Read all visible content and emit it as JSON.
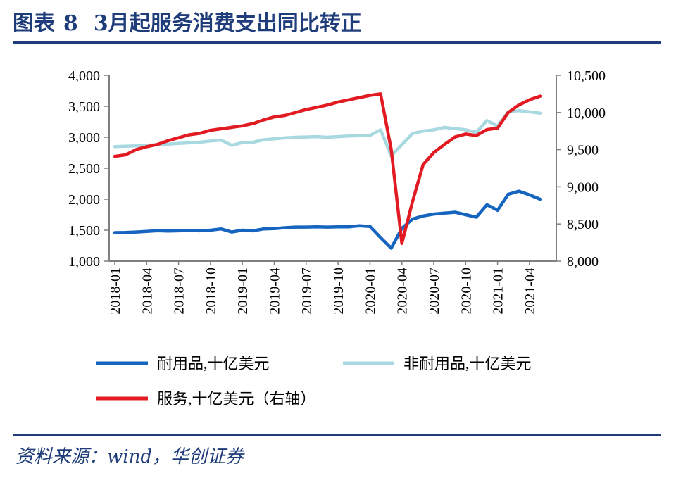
{
  "header": {
    "figure_label": "图表",
    "figure_number": "8",
    "title": "3月起服务消费支出同比转正"
  },
  "footer": {
    "source": "资料来源：wind，华创证券"
  },
  "chart_data": {
    "type": "line",
    "categories": [
      "2018-01",
      "2018-02",
      "2018-03",
      "2018-04",
      "2018-05",
      "2018-06",
      "2018-07",
      "2018-08",
      "2018-09",
      "2018-10",
      "2018-11",
      "2018-12",
      "2019-01",
      "2019-02",
      "2019-03",
      "2019-04",
      "2019-05",
      "2019-06",
      "2019-07",
      "2019-08",
      "2019-09",
      "2019-10",
      "2019-11",
      "2019-12",
      "2020-01",
      "2020-02",
      "2020-03",
      "2020-04",
      "2020-05",
      "2020-06",
      "2020-07",
      "2020-08",
      "2020-09",
      "2020-10",
      "2020-11",
      "2020-12",
      "2021-01",
      "2021-02",
      "2021-03",
      "2021-04",
      "2021-05"
    ],
    "x_tick_labels": [
      "2018-01",
      "2018-04",
      "2018-07",
      "2018-10",
      "2019-01",
      "2019-04",
      "2019-07",
      "2019-10",
      "2020-01",
      "2020-04",
      "2020-07",
      "2020-10",
      "2021-01",
      "2021-04"
    ],
    "left_axis": {
      "ylim": [
        1000,
        4000
      ],
      "ticks": [
        "1,000",
        "1,500",
        "2,000",
        "2,500",
        "3,000",
        "3,500",
        "4,000"
      ]
    },
    "right_axis": {
      "ylim": [
        8000,
        10500
      ],
      "ticks": [
        "8,000",
        "8,500",
        "9,000",
        "9,500",
        "10,000",
        "10,500"
      ]
    },
    "series": [
      {
        "name": "耐用品,十亿美元",
        "axis": "left",
        "color": "#1565c0",
        "values": [
          1460,
          1462,
          1470,
          1480,
          1492,
          1485,
          1490,
          1495,
          1490,
          1500,
          1520,
          1470,
          1500,
          1490,
          1520,
          1525,
          1540,
          1550,
          1550,
          1555,
          1550,
          1555,
          1555,
          1570,
          1560,
          1380,
          1210,
          1530,
          1680,
          1730,
          1760,
          1775,
          1790,
          1750,
          1710,
          1910,
          1820,
          2080,
          2130,
          2070,
          2000
        ]
      },
      {
        "name": "非耐用品,十亿美元",
        "axis": "left",
        "color": "#a8d8e0",
        "values": [
          2850,
          2855,
          2860,
          2870,
          2880,
          2890,
          2900,
          2910,
          2920,
          2940,
          2955,
          2870,
          2915,
          2920,
          2960,
          2975,
          2990,
          3000,
          3005,
          3010,
          3000,
          3010,
          3020,
          3025,
          3030,
          3120,
          2700,
          2880,
          3060,
          3100,
          3120,
          3160,
          3140,
          3120,
          3080,
          3270,
          3180,
          3410,
          3430,
          3410,
          3390
        ]
      },
      {
        "name": "服务,十亿美元（右轴）",
        "axis": "right",
        "color": "#e21b23",
        "values": [
          9410,
          9430,
          9500,
          9540,
          9570,
          9620,
          9660,
          9700,
          9720,
          9760,
          9780,
          9800,
          9820,
          9850,
          9900,
          9940,
          9960,
          10000,
          10040,
          10070,
          10100,
          10140,
          10170,
          10200,
          10230,
          10250,
          9500,
          8240,
          8800,
          9300,
          9460,
          9570,
          9670,
          9710,
          9690,
          9770,
          9790,
          10000,
          10100,
          10170,
          10220
        ]
      }
    ]
  }
}
